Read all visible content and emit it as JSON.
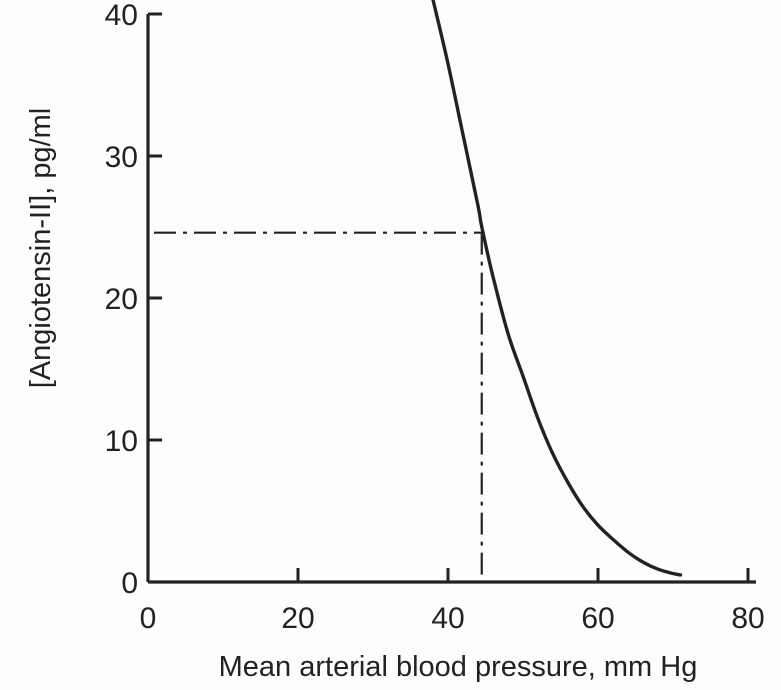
{
  "chart_data": {
    "type": "line",
    "xlabel": "Mean arterial blood pressure, mm Hg",
    "ylabel": "[Angiotensin-II], pg/ml",
    "xlim": [
      0,
      80
    ],
    "ylim": [
      0,
      40
    ],
    "x_ticks": [
      0,
      20,
      40,
      60,
      80
    ],
    "y_ticks": [
      0,
      10,
      20,
      30,
      40
    ],
    "x_tick_labels": [
      "0",
      "20",
      "40",
      "60",
      "80"
    ],
    "y_tick_labels": [
      "0",
      "10",
      "20",
      "30",
      "40"
    ],
    "grid": false,
    "series": [
      {
        "points": [
          [
            38.0,
            41.0
          ],
          [
            40.0,
            36.5
          ],
          [
            42.0,
            31.5
          ],
          [
            44.0,
            26.5
          ],
          [
            44.5,
            25.0
          ],
          [
            46.0,
            21.5
          ],
          [
            48.0,
            17.5
          ],
          [
            50.0,
            14.5
          ],
          [
            52.0,
            11.5
          ],
          [
            54.0,
            9.0
          ],
          [
            56.0,
            7.0
          ],
          [
            58.0,
            5.3
          ],
          [
            60.0,
            4.0
          ],
          [
            62.0,
            3.0
          ],
          [
            64.0,
            2.1
          ],
          [
            66.0,
            1.4
          ],
          [
            68.0,
            0.9
          ],
          [
            70.0,
            0.6
          ],
          [
            71.0,
            0.5
          ]
        ]
      }
    ],
    "reference_lines": {
      "style": "dash-dot",
      "x": 44.5,
      "y": 24.6
    }
  },
  "colors": {
    "ink": "#222222",
    "background": "#fdfdfc"
  }
}
